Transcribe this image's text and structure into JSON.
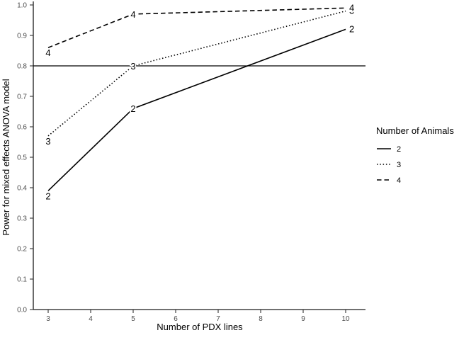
{
  "chart_data": {
    "type": "line",
    "title": "",
    "xlabel": "Number of PDX lines",
    "ylabel": "Power for mixed effects ANOVA model",
    "x_ticks": [
      3,
      4,
      5,
      6,
      7,
      8,
      9,
      10
    ],
    "y_ticks": [
      "0.0",
      "0.1",
      "0.2",
      "0.3",
      "0.4",
      "0.5",
      "0.6",
      "0.7",
      "0.8",
      "0.9",
      "1.0"
    ],
    "xlim": [
      3,
      10
    ],
    "ylim": [
      0.0,
      1.0
    ],
    "grid": "off",
    "reference_line_y": 0.8,
    "legend_position": "right",
    "legend": {
      "title": "Number of Animals",
      "entries": [
        {
          "label": "2",
          "style": "solid"
        },
        {
          "label": "3",
          "style": "dotted"
        },
        {
          "label": "4",
          "style": "dashed"
        }
      ]
    },
    "series": [
      {
        "name": "2",
        "style": "solid",
        "x": [
          3,
          5,
          10
        ],
        "y": [
          0.39,
          0.66,
          0.92
        ]
      },
      {
        "name": "3",
        "style": "dotted",
        "x": [
          3,
          5,
          10
        ],
        "y": [
          0.57,
          0.8,
          0.98
        ]
      },
      {
        "name": "4",
        "style": "dashed",
        "x": [
          3,
          5,
          10
        ],
        "y": [
          0.86,
          0.97,
          0.99
        ]
      }
    ],
    "colors": {
      "line": "#000000",
      "axis": "#1a1a1a",
      "tick_mark": "#333333",
      "tick_text": "#4d4d4d",
      "background": "#ffffff"
    }
  }
}
